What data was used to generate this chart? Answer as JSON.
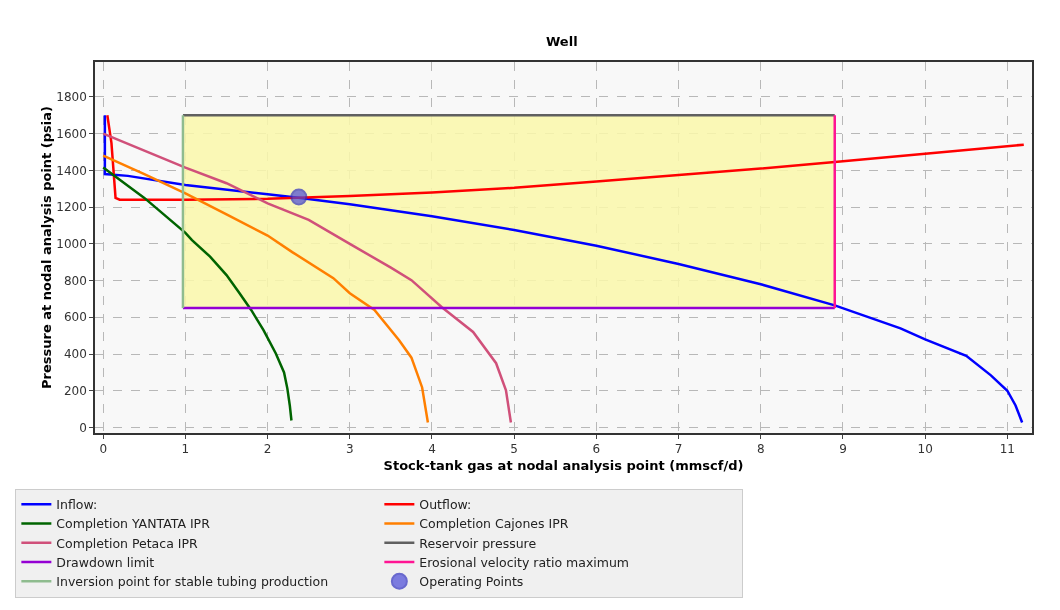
{
  "chart_data": {
    "type": "line",
    "title": "Well",
    "xlabel": "Stock-tank gas at nodal analysis point (mmscf/d)",
    "ylabel": "Pressure at nodal analysis point (psia)",
    "xlim": [
      -0.1,
      11.3
    ],
    "xticks": [
      0,
      1,
      2,
      3,
      4,
      5,
      6,
      7,
      8,
      9,
      10,
      11
    ],
    "ylim": [
      -30,
      1990
    ],
    "yticks": [
      0,
      200,
      400,
      600,
      800,
      1000,
      1200,
      1400,
      1600,
      1800
    ],
    "grid": true,
    "legend": "bottom",
    "marker": "none",
    "line_style": "solid",
    "series": [
      {
        "name": "Inflow:",
        "color": "#0000ff",
        "x": [
          0.02,
          0.02,
          0.3,
          1,
          2,
          2.4,
          3,
          4,
          5,
          6,
          7,
          8,
          8.9,
          9.7,
          10,
          10.5,
          10.8,
          11,
          11.1,
          11.18
        ],
        "values": [
          1700,
          1380,
          1370,
          1320,
          1270,
          1250,
          1215,
          1150,
          1075,
          990,
          890,
          780,
          665,
          540,
          480,
          390,
          284,
          200,
          120,
          27
        ]
      },
      {
        "name": "Outflow:",
        "color": "#ff0000",
        "x": [
          0.05,
          0.1,
          0.15,
          0.2,
          1,
          2,
          3,
          4,
          5,
          6,
          7,
          8,
          8.9,
          10,
          11.2
        ],
        "values": [
          1700,
          1550,
          1250,
          1240,
          1240,
          1245,
          1260,
          1280,
          1305,
          1340,
          1375,
          1410,
          1445,
          1490,
          1540
        ]
      },
      {
        "name": "Completion YANTATA IPR",
        "color": "#006400",
        "x": [
          0,
          0.5,
          1,
          1.08,
          1.3,
          1.5,
          1.65,
          1.8,
          1.95,
          2.1,
          2.2,
          2.24,
          2.27,
          2.29
        ],
        "values": [
          1415,
          1250,
          1060,
          1020,
          930,
          830,
          736,
          640,
          530,
          403,
          300,
          213,
          120,
          38
        ]
      },
      {
        "name": "Completion Cajones IPR",
        "color": "#ff7f00",
        "x": [
          0,
          0.5,
          1,
          1.5,
          2,
          2.3,
          2.8,
          3,
          3.3,
          3.6,
          3.75,
          3.88,
          3.95
        ],
        "values": [
          1480,
          1380,
          1275,
          1160,
          1045,
          955,
          813,
          731,
          640,
          475,
          380,
          218,
          27
        ]
      },
      {
        "name": "Completion Petaca IPR",
        "color": "#d0507a",
        "x": [
          0,
          1,
          1.5,
          2,
          2.5,
          3,
          3.5,
          3.75,
          4.12,
          4.5,
          4.78,
          4.9,
          4.96
        ],
        "values": [
          1600,
          1415,
          1330,
          1220,
          1130,
          1000,
          870,
          802,
          655,
          520,
          350,
          202,
          27
        ]
      },
      {
        "name": "Reservoir pressure",
        "color": "#606060",
        "x": [
          0.97,
          8.9
        ],
        "values": [
          1700,
          1700
        ],
        "lower": [
          650,
          650
        ],
        "upper": [
          1700,
          1700
        ]
      },
      {
        "name": "Drawdown limit",
        "color": "#9400d3",
        "x": [
          0.97,
          8.9
        ],
        "values": [
          650,
          650
        ]
      },
      {
        "name": "Erosional velocity ratio maximum",
        "color": "#ff1493",
        "x": [
          8.9,
          8.9
        ],
        "values": [
          650,
          1700
        ]
      },
      {
        "name": "Inversion point for stable tubing production",
        "color": "#8fbc8f",
        "x": [
          0.97,
          0.97
        ],
        "values": [
          650,
          1700
        ]
      },
      {
        "name": "Operating Points",
        "type": "scatter",
        "marker": "circle",
        "color": "#4a4ad8",
        "x": [
          2.38
        ],
        "values": [
          1255
        ]
      }
    ]
  }
}
